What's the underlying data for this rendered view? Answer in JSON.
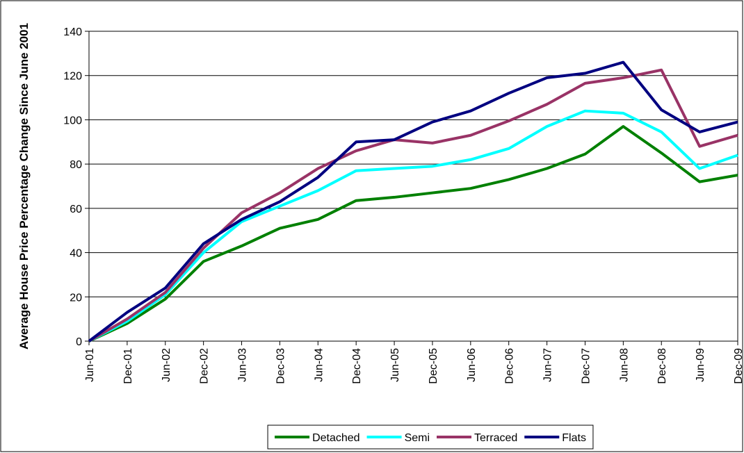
{
  "chart_data": {
    "type": "line",
    "y_label": "Average House Price Percentage Change Since June 2001",
    "categories": [
      "Jun-01",
      "Dec-01",
      "Jun-02",
      "Dec-02",
      "Jun-03",
      "Dec-03",
      "Jun-04",
      "Dec-04",
      "Jun-05",
      "Dec-05",
      "Jun-06",
      "Dec-06",
      "Jun-07",
      "Dec-07",
      "Jun-08",
      "Dec-08",
      "Jun-09",
      "Dec-09"
    ],
    "series": [
      {
        "name": "Detached",
        "color": "#008000",
        "values": [
          0,
          8,
          19,
          36,
          43,
          51,
          55,
          63.5,
          65,
          67,
          69,
          73,
          78,
          84.5,
          97,
          85,
          72,
          75
        ]
      },
      {
        "name": "Semi",
        "color": "#00ffff",
        "values": [
          0,
          9,
          21,
          40,
          54,
          61,
          68,
          77,
          78,
          79,
          82,
          87,
          97,
          104,
          103,
          94.5,
          78,
          84
        ]
      },
      {
        "name": "Terraced",
        "color": "#993366",
        "values": [
          0,
          10,
          22,
          42,
          58,
          67,
          78,
          86,
          91,
          89.5,
          93,
          99.5,
          107,
          116.5,
          119,
          122.5,
          88,
          93
        ]
      },
      {
        "name": "Flats",
        "color": "#000080",
        "values": [
          0,
          13,
          24,
          44,
          55,
          63,
          74,
          90,
          91,
          99,
          104,
          112,
          119,
          121,
          126,
          104.5,
          94.5,
          99
        ]
      }
    ],
    "ylim": [
      0,
      140
    ],
    "yticks": [
      0,
      20,
      40,
      60,
      80,
      100,
      120,
      140
    ],
    "grid": true,
    "legend": "bottom"
  }
}
